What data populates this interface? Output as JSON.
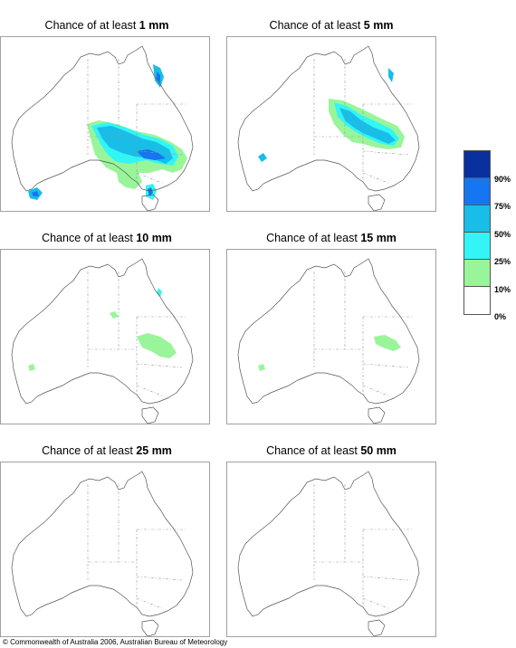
{
  "panels": [
    {
      "prefix": "Chance of at least ",
      "amount": "1 mm"
    },
    {
      "prefix": "Chance of at least ",
      "amount": "5 mm"
    },
    {
      "prefix": "Chance of at least ",
      "amount": "10 mm"
    },
    {
      "prefix": "Chance of at least ",
      "amount": "15 mm"
    },
    {
      "prefix": "Chance of at least ",
      "amount": "25 mm"
    },
    {
      "prefix": "Chance of at least ",
      "amount": "50 mm"
    }
  ],
  "legend": {
    "colors": [
      "#0a2f9e",
      "#1675f0",
      "#18bde8",
      "#33f5f5",
      "#99f599",
      "#ffffff"
    ],
    "labels": [
      "90%",
      "75%",
      "50%",
      "25%",
      "10%",
      "0%"
    ]
  },
  "copyright": "© Commonwealth of Australia 2006, Australian Bureau of Meteorology"
}
